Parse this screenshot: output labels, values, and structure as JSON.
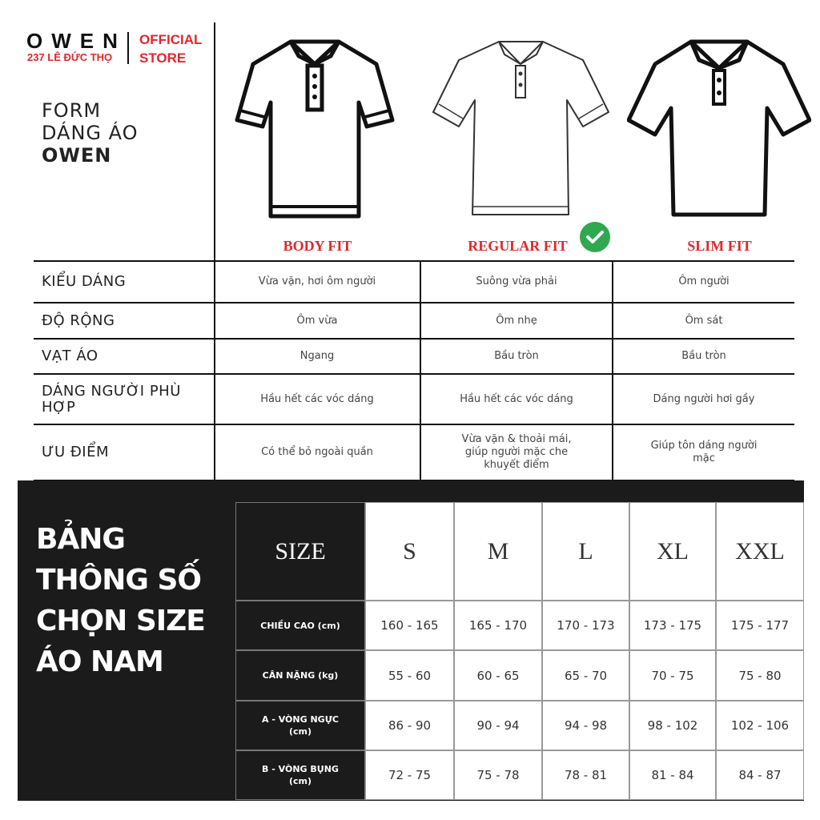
{
  "logo": {
    "brand": "OWEN",
    "address": "237 LÊ ĐỨC THỌ",
    "store_line1": "OFFICIAL",
    "store_line2": "STORE"
  },
  "form_title": {
    "line1": "FORM",
    "line2": "DÁNG ÁO",
    "line3": "OWEN"
  },
  "fits": [
    {
      "label": "BODY FIT"
    },
    {
      "label": "REGULAR FIT",
      "recommended": true
    },
    {
      "label": "SLIM FIT"
    }
  ],
  "colors": {
    "accent_red": "#e3262b",
    "check_green": "#2fa84f",
    "dark": "#1b1b1b"
  },
  "form_rows": [
    {
      "label": "KIỂU DÁNG",
      "values": [
        "Vừa vặn, hơi ôm người",
        "Suông vừa phải",
        "Ôm người"
      ]
    },
    {
      "label": "ĐỘ RỘNG",
      "values": [
        "Ôm vừa",
        "Ôm nhẹ",
        "Ôm sát"
      ]
    },
    {
      "label": "VẠT ÁO",
      "values": [
        "Ngang",
        "Bầu tròn",
        "Bầu tròn"
      ]
    },
    {
      "label": "DÁNG NGƯỜI PHÙ HỢP",
      "values": [
        "Hầu hết các vóc dáng",
        "Hầu hết các vóc dáng",
        "Dáng người hơi gầy"
      ]
    },
    {
      "label": "ƯU ĐIỂM",
      "values": [
        "Có thể bỏ ngoài quần",
        "Vừa vặn & thoải mái, giúp người mặc che khuyết điểm",
        "Giúp tôn dáng người mặc"
      ]
    }
  ],
  "size_title": {
    "line1": "BẢNG",
    "line2": "THÔNG SỐ",
    "line3": "CHỌN SIZE",
    "line4": "ÁO NAM"
  },
  "size_table": {
    "header_label": "SIZE",
    "sizes": [
      "S",
      "M",
      "L",
      "XL",
      "XXL"
    ],
    "rows": [
      {
        "label": "CHIỀU CAO (cm)",
        "values": [
          "160 - 165",
          "165 - 170",
          "170 - 173",
          "173 - 175",
          "175 - 177"
        ]
      },
      {
        "label": "CÂN NẶNG (kg)",
        "values": [
          "55 - 60",
          "60 - 65",
          "65 - 70",
          "70 - 75",
          "75 - 80"
        ]
      },
      {
        "label": "A - VÒNG NGỰC (cm)",
        "values": [
          "86 - 90",
          "90 - 94",
          "94 - 98",
          "98 - 102",
          "102 - 106"
        ]
      },
      {
        "label": "B - VÒNG BỤNG (cm)",
        "values": [
          "72 - 75",
          "75 - 78",
          "78 - 81",
          "81 - 84",
          "84 - 87"
        ]
      }
    ]
  }
}
